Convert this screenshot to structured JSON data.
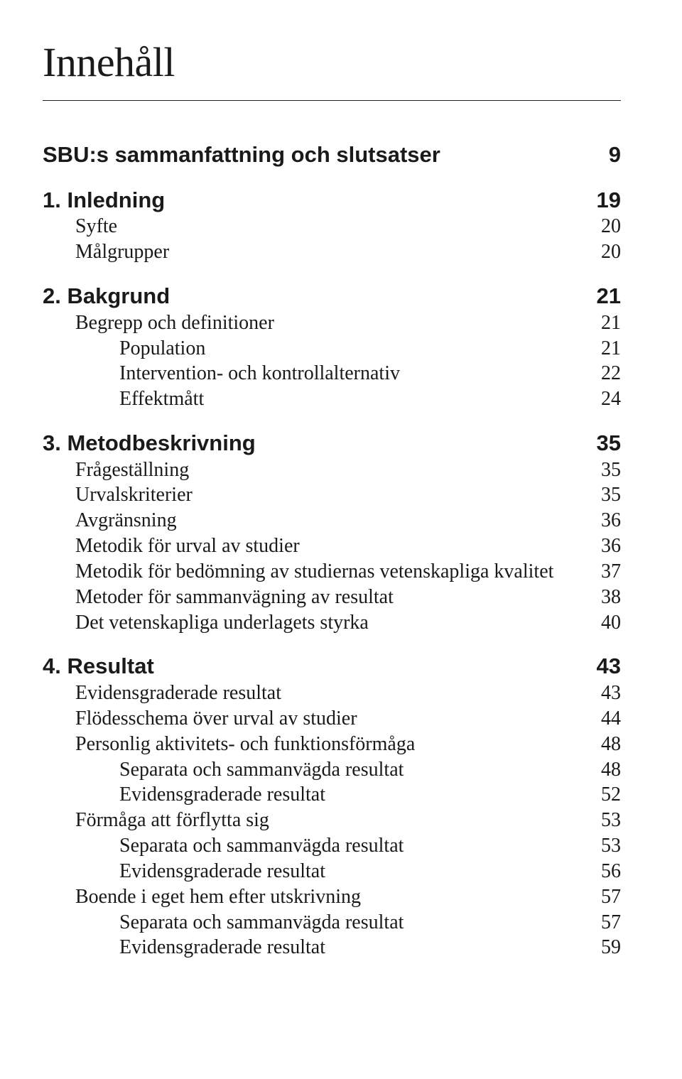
{
  "title": "Innehåll",
  "toc": [
    {
      "label": "SBU:s sammanfattning och slutsatser",
      "page": "9",
      "bold": true,
      "indent": 0
    },
    {
      "gap": "section"
    },
    {
      "label": "1.  Inledning",
      "page": "19",
      "bold": true,
      "indent": 0
    },
    {
      "label": "Syfte",
      "page": "20",
      "bold": false,
      "indent": 1
    },
    {
      "label": "Målgrupper",
      "page": "20",
      "bold": false,
      "indent": 1
    },
    {
      "gap": "section"
    },
    {
      "label": "2.  Bakgrund",
      "page": "21",
      "bold": true,
      "indent": 0
    },
    {
      "label": "Begrepp och definitioner",
      "page": "21",
      "bold": false,
      "indent": 1
    },
    {
      "label": "Population",
      "page": "21",
      "bold": false,
      "indent": 2
    },
    {
      "label": "Intervention- och kontrollalternativ",
      "page": "22",
      "bold": false,
      "indent": 2
    },
    {
      "label": "Effektmått",
      "page": "24",
      "bold": false,
      "indent": 2
    },
    {
      "gap": "section"
    },
    {
      "label": "3.  Metodbeskrivning",
      "page": "35",
      "bold": true,
      "indent": 0
    },
    {
      "label": "Frågeställning",
      "page": "35",
      "bold": false,
      "indent": 1
    },
    {
      "label": "Urvalskriterier",
      "page": "35",
      "bold": false,
      "indent": 1
    },
    {
      "label": "Avgränsning",
      "page": "36",
      "bold": false,
      "indent": 1
    },
    {
      "label": "Metodik för urval av studier",
      "page": "36",
      "bold": false,
      "indent": 1
    },
    {
      "label": "Metodik för bedömning av studiernas vetenskapliga kvalitet",
      "page": "37",
      "bold": false,
      "indent": 1
    },
    {
      "label": "Metoder för sammanvägning av resultat",
      "page": "38",
      "bold": false,
      "indent": 1
    },
    {
      "label": "Det vetenskapliga underlagets styrka",
      "page": "40",
      "bold": false,
      "indent": 1
    },
    {
      "gap": "section"
    },
    {
      "label": "4.  Resultat",
      "page": "43",
      "bold": true,
      "indent": 0
    },
    {
      "label": "Evidensgraderade resultat",
      "page": "43",
      "bold": false,
      "indent": 1
    },
    {
      "label": "Flödesschema över urval av studier",
      "page": "44",
      "bold": false,
      "indent": 1
    },
    {
      "label": "Personlig aktivitets- och funktionsförmåga",
      "page": "48",
      "bold": false,
      "indent": 1
    },
    {
      "label": "Separata och sammanvägda resultat",
      "page": "48",
      "bold": false,
      "indent": 2
    },
    {
      "label": "Evidensgraderade resultat",
      "page": "52",
      "bold": false,
      "indent": 2
    },
    {
      "label": "Förmåga att förflytta sig",
      "page": "53",
      "bold": false,
      "indent": 1
    },
    {
      "label": "Separata och sammanvägda resultat",
      "page": "53",
      "bold": false,
      "indent": 2
    },
    {
      "label": "Evidensgraderade resultat",
      "page": "56",
      "bold": false,
      "indent": 2
    },
    {
      "label": "Boende i eget hem efter utskrivning",
      "page": "57",
      "bold": false,
      "indent": 1
    },
    {
      "label": "Separata och sammanvägda resultat",
      "page": "57",
      "bold": false,
      "indent": 2
    },
    {
      "label": "Evidensgraderade resultat",
      "page": "59",
      "bold": false,
      "indent": 2
    }
  ]
}
